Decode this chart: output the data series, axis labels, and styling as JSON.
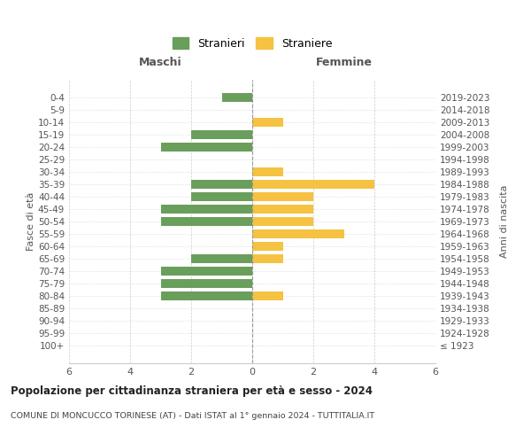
{
  "age_groups": [
    "100+",
    "95-99",
    "90-94",
    "85-89",
    "80-84",
    "75-79",
    "70-74",
    "65-69",
    "60-64",
    "55-59",
    "50-54",
    "45-49",
    "40-44",
    "35-39",
    "30-34",
    "25-29",
    "20-24",
    "15-19",
    "10-14",
    "5-9",
    "0-4"
  ],
  "birth_years": [
    "≤ 1923",
    "1924-1928",
    "1929-1933",
    "1934-1938",
    "1939-1943",
    "1944-1948",
    "1949-1953",
    "1954-1958",
    "1959-1963",
    "1964-1968",
    "1969-1973",
    "1974-1978",
    "1979-1983",
    "1984-1988",
    "1989-1993",
    "1994-1998",
    "1999-2003",
    "2004-2008",
    "2009-2013",
    "2014-2018",
    "2019-2023"
  ],
  "males": [
    0,
    0,
    0,
    0,
    3,
    3,
    3,
    2,
    0,
    0,
    3,
    3,
    2,
    2,
    0,
    0,
    3,
    2,
    0,
    0,
    1
  ],
  "females": [
    0,
    0,
    0,
    0,
    1,
    0,
    0,
    1,
    1,
    3,
    2,
    2,
    2,
    4,
    1,
    0,
    0,
    0,
    1,
    0,
    0
  ],
  "male_color": "#6a9e5b",
  "female_color": "#f5c242",
  "background_color": "#ffffff",
  "grid_color": "#cccccc",
  "title": "Popolazione per cittadinanza straniera per età e sesso - 2024",
  "subtitle": "COMUNE DI MONCUCCO TORINESE (AT) - Dati ISTAT al 1° gennaio 2024 - TUTTITALIA.IT",
  "xlabel_left": "Maschi",
  "xlabel_right": "Femmine",
  "ylabel_left": "Fasce di età",
  "ylabel_right": "Anni di nascita",
  "legend_male": "Stranieri",
  "legend_female": "Straniere",
  "xlim": 6
}
